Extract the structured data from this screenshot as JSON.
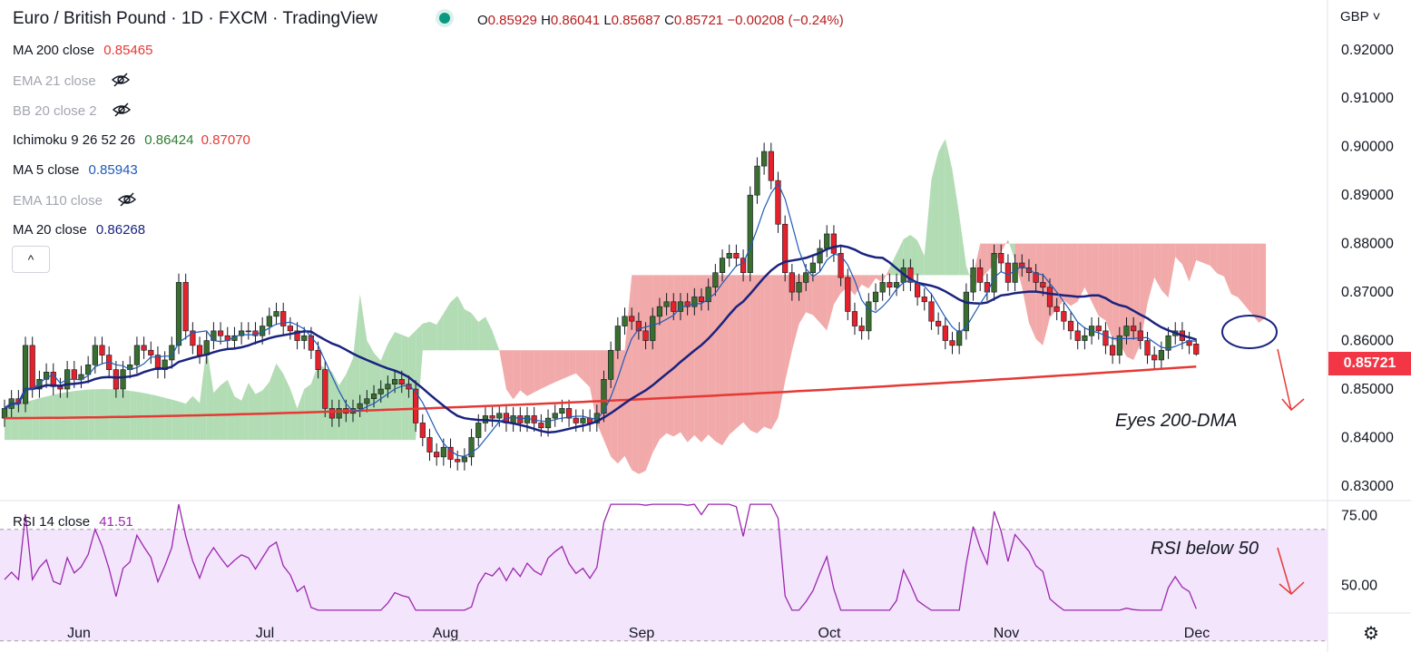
{
  "header": {
    "title": "Euro / British Pound · 1D · FXCM · TradingView",
    "ohlc": [
      {
        "k": "O",
        "v": "0.85929"
      },
      {
        "k": "H",
        "v": "0.86041"
      },
      {
        "k": "L",
        "v": "0.85687"
      },
      {
        "k": "C",
        "v": "0.85721"
      }
    ],
    "change": "−0.00208 (−0.24%)",
    "currency": "GBP ˅"
  },
  "legend": {
    "ma200": {
      "label": "MA 200 close",
      "value": "0.85465"
    },
    "ema21": {
      "label": "EMA 21 close"
    },
    "bb20": {
      "label": "BB 20 close 2"
    },
    "ichimoku": {
      "label": "Ichimoku 9 26 52 26",
      "value1": "0.86424",
      "value2": "0.87070"
    },
    "ma5": {
      "label": "MA 5 close",
      "value": "0.85943"
    },
    "ema110": {
      "label": "EMA 110 close"
    },
    "ma20": {
      "label": "MA 20 close",
      "value": "0.86268"
    },
    "collapse_icon": "^"
  },
  "price_axis": {
    "ticks": [
      "0.92000",
      "0.91000",
      "0.90000",
      "0.89000",
      "0.88000",
      "0.87000",
      "0.86000",
      "0.85000",
      "0.84000",
      "0.83000"
    ],
    "last_price": "0.85721"
  },
  "rsi": {
    "label": "RSI 14 close",
    "value": "41.51",
    "ticks": [
      "75.00",
      "50.00"
    ]
  },
  "time_axis": {
    "labels": [
      "Jun",
      "Jul",
      "Aug",
      "Sep",
      "Oct",
      "Nov",
      "Dec"
    ]
  },
  "annotations": {
    "eyes": "Eyes 200-DMA",
    "rsi_note": "RSI below 50"
  },
  "colors": {
    "up": "#3a6e2f",
    "down": "#e5222b",
    "ma200": "#e53935",
    "ma20": "#1a237e",
    "ma5": "#1e5bb8",
    "cloud_bull": "#a5d6a7",
    "cloud_bear": "#ef9a9a",
    "rsi": "#9c27b0",
    "rsi_band": "#f3e5fb"
  },
  "chart_data": {
    "type": "candlestick",
    "instrument": "EUR/GBP",
    "timeframe": "1D",
    "ylim": [
      0.827,
      0.928
    ],
    "x_labels": [
      "Jun",
      "Jul",
      "Aug",
      "Sep",
      "Oct",
      "Nov",
      "Dec"
    ],
    "closes": [
      0.846,
      0.848,
      0.847,
      0.859,
      0.85,
      0.852,
      0.8535,
      0.8505,
      0.85,
      0.854,
      0.852,
      0.853,
      0.855,
      0.859,
      0.857,
      0.854,
      0.85,
      0.854,
      0.855,
      0.859,
      0.858,
      0.857,
      0.854,
      0.856,
      0.859,
      0.872,
      0.862,
      0.859,
      0.857,
      0.86,
      0.862,
      0.861,
      0.86,
      0.861,
      0.862,
      0.862,
      0.861,
      0.863,
      0.865,
      0.866,
      0.863,
      0.862,
      0.86,
      0.861,
      0.858,
      0.854,
      0.846,
      0.844,
      0.846,
      0.845,
      0.846,
      0.847,
      0.848,
      0.849,
      0.85,
      0.851,
      0.852,
      0.851,
      0.85,
      0.843,
      0.84,
      0.837,
      0.836,
      0.838,
      0.8355,
      0.835,
      0.836,
      0.84,
      0.843,
      0.8445,
      0.844,
      0.845,
      0.843,
      0.8445,
      0.843,
      0.8445,
      0.843,
      0.842,
      0.844,
      0.845,
      0.846,
      0.844,
      0.843,
      0.844,
      0.843,
      0.845,
      0.852,
      0.858,
      0.863,
      0.865,
      0.864,
      0.862,
      0.86,
      0.865,
      0.867,
      0.868,
      0.866,
      0.868,
      0.867,
      0.869,
      0.868,
      0.871,
      0.874,
      0.877,
      0.878,
      0.877,
      0.874,
      0.89,
      0.896,
      0.899,
      0.893,
      0.884,
      0.874,
      0.87,
      0.872,
      0.874,
      0.876,
      0.879,
      0.882,
      0.878,
      0.873,
      0.866,
      0.863,
      0.862,
      0.868,
      0.87,
      0.872,
      0.871,
      0.872,
      0.875,
      0.872,
      0.869,
      0.868,
      0.864,
      0.863,
      0.86,
      0.859,
      0.862,
      0.87,
      0.875,
      0.872,
      0.87,
      0.878,
      0.876,
      0.872,
      0.876,
      0.875,
      0.874,
      0.872,
      0.871,
      0.867,
      0.866,
      0.864,
      0.862,
      0.86,
      0.861,
      0.863,
      0.862,
      0.859,
      0.857,
      0.861,
      0.863,
      0.862,
      0.86,
      0.857,
      0.856,
      0.858,
      0.861,
      0.862,
      0.86,
      0.859,
      0.8572
    ],
    "series_values_at_last": {
      "MA 200 close": 0.85465,
      "MA 5 close": 0.85943,
      "MA 20 close": 0.86268,
      "Ichimoku lead 1": 0.86424,
      "Ichimoku lead 2": 0.8707
    },
    "last": {
      "open": 0.85929,
      "high": 0.86041,
      "low": 0.85687,
      "close": 0.85721
    },
    "rsi": {
      "name": "RSI 14 close",
      "ylim": [
        40,
        80
      ],
      "last": 41.51,
      "bands": [
        30,
        70
      ]
    }
  }
}
